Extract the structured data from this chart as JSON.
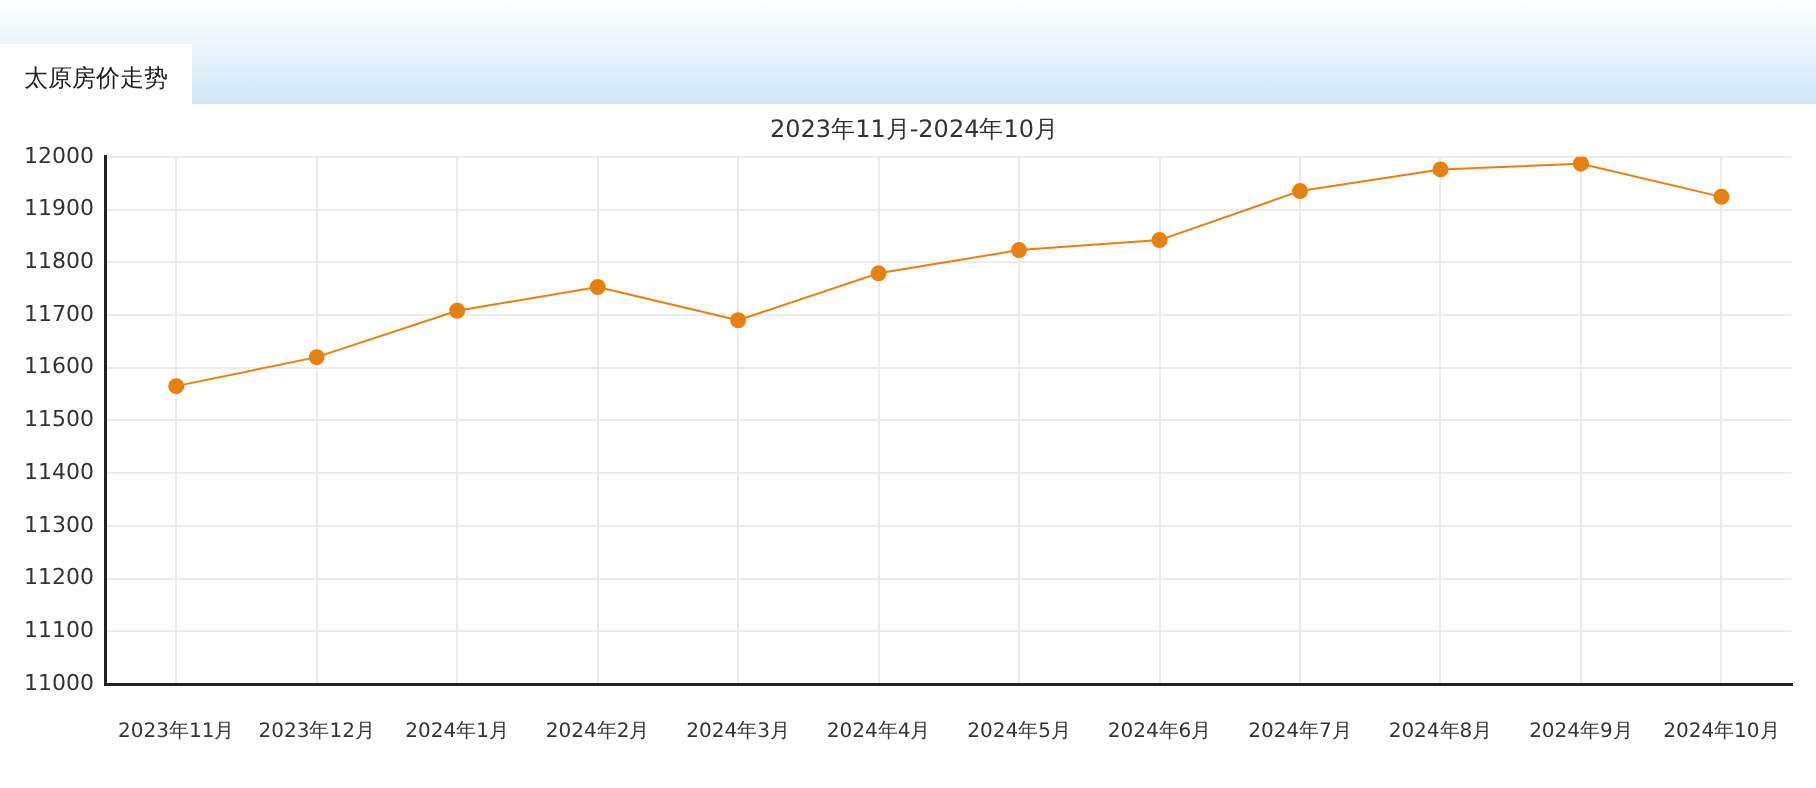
{
  "chart_data": {
    "type": "line",
    "title": "太原房价走势",
    "subtitle": "2023年11月-2024年10月",
    "categories": [
      "2023年11月",
      "2023年12月",
      "2024年1月",
      "2024年2月",
      "2024年3月",
      "2024年4月",
      "2024年5月",
      "2024年6月",
      "2024年7月",
      "2024年8月",
      "2024年9月",
      "2024年10月"
    ],
    "series": [
      {
        "color": "#e8800f",
        "values": [
          11565,
          11620,
          11708,
          11753,
          11690,
          11779,
          11823,
          11842,
          11935,
          11976,
          11987,
          11924
        ]
      }
    ],
    "ylim": [
      11000,
      12000
    ],
    "yticks": [
      11000,
      11100,
      11200,
      11300,
      11400,
      11500,
      11600,
      11700,
      11800,
      11900,
      12000
    ],
    "grid": true,
    "legend": false,
    "marker": "circle",
    "line_style": "solid"
  }
}
